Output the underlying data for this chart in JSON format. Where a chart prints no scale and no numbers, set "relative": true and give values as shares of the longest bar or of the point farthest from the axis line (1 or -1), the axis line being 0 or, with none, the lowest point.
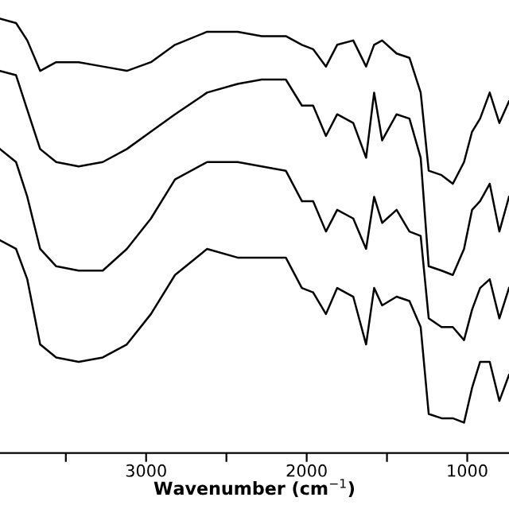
{
  "chart_data": {
    "type": "line",
    "relative": true,
    "xlabel": "Wavenumber (cm$^{−1}$)",
    "x": [
      3910,
      3810,
      3740,
      3660,
      3560,
      3420,
      3270,
      3120,
      2970,
      2820,
      2620,
      2430,
      2280,
      2130,
      2030,
      1960,
      1880,
      1810,
      1710,
      1630,
      1580,
      1530,
      1440,
      1360,
      1290,
      1240,
      1160,
      1090,
      1020,
      970,
      920,
      860,
      800,
      740
    ],
    "xlim": [
      3910,
      740
    ],
    "xticks": [
      {
        "value": 3500,
        "label": null
      },
      3000,
      {
        "value": 2500,
        "label": null
      },
      2000,
      {
        "value": 1500,
        "label": null
      },
      1000
    ],
    "series": [
      {
        "color": "#000000",
        "values": [
          1.0,
          0.99,
          0.95,
          0.88,
          0.9,
          0.9,
          0.89,
          0.88,
          0.9,
          0.94,
          0.97,
          0.97,
          0.96,
          0.96,
          0.94,
          0.93,
          0.89,
          0.94,
          0.95,
          0.89,
          0.94,
          0.95,
          0.92,
          0.91,
          0.83,
          0.65,
          0.64,
          0.62,
          0.67,
          0.74,
          0.77,
          0.83,
          0.76,
          0.81
        ]
      },
      {
        "color": "#000000",
        "values": [
          0.88,
          0.87,
          0.79,
          0.7,
          0.67,
          0.66,
          0.67,
          0.7,
          0.74,
          0.78,
          0.83,
          0.85,
          0.86,
          0.86,
          0.8,
          0.8,
          0.73,
          0.78,
          0.76,
          0.68,
          0.83,
          0.72,
          0.78,
          0.77,
          0.68,
          0.43,
          0.42,
          0.41,
          0.47,
          0.56,
          0.58,
          0.62,
          0.51,
          0.59
        ]
      },
      {
        "color": "#000000",
        "values": [
          0.7,
          0.67,
          0.59,
          0.47,
          0.43,
          0.42,
          0.42,
          0.47,
          0.54,
          0.63,
          0.67,
          0.67,
          0.66,
          0.65,
          0.58,
          0.58,
          0.51,
          0.56,
          0.54,
          0.47,
          0.59,
          0.53,
          0.56,
          0.51,
          0.5,
          0.31,
          0.29,
          0.29,
          0.26,
          0.33,
          0.38,
          0.4,
          0.31,
          0.38
        ]
      },
      {
        "color": "#000000",
        "values": [
          0.49,
          0.47,
          0.4,
          0.25,
          0.22,
          0.21,
          0.22,
          0.25,
          0.32,
          0.41,
          0.47,
          0.45,
          0.45,
          0.45,
          0.38,
          0.37,
          0.32,
          0.38,
          0.36,
          0.25,
          0.38,
          0.34,
          0.36,
          0.35,
          0.29,
          0.09,
          0.08,
          0.08,
          0.07,
          0.15,
          0.21,
          0.21,
          0.12,
          0.18
        ]
      }
    ]
  }
}
